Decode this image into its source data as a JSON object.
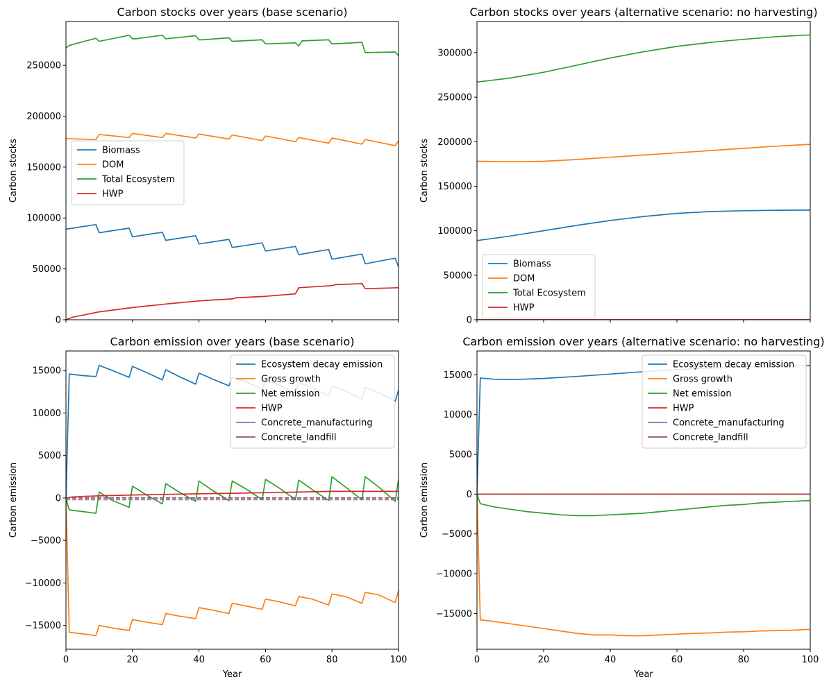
{
  "colors": {
    "Biomass": "#1f77b4",
    "DOM": "#ff7f0e",
    "Total Ecosystem": "#2ca02c",
    "HWP": "#d62728",
    "Ecosystem decay emission": "#1f77b4",
    "Gross growth": "#ff7f0e",
    "Net emission": "#2ca02c",
    "Concrete_manufacturing": "#9467bd",
    "Concrete_landfill": "#8c564b"
  },
  "chart_data": [
    {
      "type": "line",
      "title": "Carbon stocks over years (base scenario)",
      "xlabel": "",
      "ylabel": "Carbon stocks",
      "xlim": [
        0,
        100
      ],
      "ylim": [
        0,
        293000
      ],
      "xticks": [
        0,
        20,
        40,
        60,
        80,
        100
      ],
      "xtick_labels_visible": false,
      "yticks": [
        0,
        50000,
        100000,
        150000,
        200000,
        250000
      ],
      "legend": {
        "placement": "center-left",
        "entries": [
          "Biomass",
          "DOM",
          "Total Ecosystem",
          "HWP"
        ]
      },
      "series": [
        {
          "name": "Biomass",
          "x": [
            0,
            9,
            10,
            19,
            20,
            29,
            30,
            39,
            40,
            49,
            50,
            59,
            60,
            69,
            70,
            79,
            80,
            89,
            90,
            99,
            100
          ],
          "values": [
            89000,
            93500,
            85500,
            90000,
            81500,
            86000,
            78000,
            82500,
            74500,
            79000,
            71000,
            75500,
            67500,
            72000,
            64000,
            69000,
            59500,
            64500,
            55000,
            60500,
            52000
          ]
        },
        {
          "name": "DOM",
          "x": [
            0,
            9,
            10,
            19,
            20,
            29,
            30,
            39,
            40,
            49,
            50,
            59,
            60,
            69,
            70,
            79,
            80,
            89,
            90,
            99,
            100
          ],
          "values": [
            178000,
            177000,
            182000,
            179000,
            183000,
            179000,
            183000,
            178500,
            182500,
            177500,
            181500,
            176000,
            180500,
            175000,
            179000,
            173500,
            178500,
            172500,
            177000,
            171000,
            176000
          ]
        },
        {
          "name": "Total Ecosystem",
          "x": [
            0,
            1,
            9,
            10,
            19,
            20,
            21,
            29,
            30,
            39,
            40,
            41,
            49,
            50,
            59,
            60,
            69,
            70,
            71,
            79,
            80,
            89,
            90,
            99,
            100
          ],
          "values": [
            267000,
            269500,
            276500,
            273500,
            279500,
            276000,
            276000,
            279500,
            276000,
            279000,
            275000,
            275000,
            277000,
            273500,
            275000,
            271000,
            272000,
            269000,
            274000,
            275000,
            271000,
            272500,
            262500,
            263000,
            259500
          ]
        },
        {
          "name": "HWP",
          "x": [
            0,
            2,
            5,
            10,
            20,
            30,
            40,
            42,
            50,
            51,
            60,
            69,
            70,
            80,
            81,
            89,
            90,
            100
          ],
          "values": [
            0,
            2500,
            4500,
            7800,
            12000,
            15500,
            18500,
            19000,
            20500,
            21500,
            23000,
            25500,
            31500,
            33500,
            34500,
            35500,
            30500,
            31500
          ]
        }
      ]
    },
    {
      "type": "line",
      "title": "Carbon stocks over years (alternative scenario: no harvesting)",
      "xlabel": "",
      "ylabel": "Carbon stocks",
      "xlim": [
        0,
        100
      ],
      "ylim": [
        0,
        335000
      ],
      "xticks": [
        0,
        20,
        40,
        60,
        80,
        100
      ],
      "xtick_labels_visible": false,
      "yticks": [
        0,
        50000,
        100000,
        150000,
        200000,
        250000,
        300000
      ],
      "legend": {
        "placement": "lower-left",
        "entries": [
          "Biomass",
          "DOM",
          "Total Ecosystem",
          "HWP"
        ]
      },
      "series": [
        {
          "name": "Biomass",
          "x": [
            0,
            10,
            20,
            30,
            40,
            50,
            60,
            70,
            80,
            90,
            100
          ],
          "values": [
            89000,
            94000,
            100000,
            106000,
            111500,
            116000,
            119500,
            121500,
            122500,
            123000,
            123200
          ]
        },
        {
          "name": "DOM",
          "x": [
            0,
            10,
            20,
            30,
            40,
            50,
            60,
            70,
            80,
            90,
            100
          ],
          "values": [
            178000,
            177500,
            178000,
            180000,
            182500,
            185000,
            187500,
            190000,
            192500,
            195000,
            197000
          ]
        },
        {
          "name": "Total Ecosystem",
          "x": [
            0,
            10,
            20,
            30,
            40,
            50,
            60,
            70,
            80,
            90,
            100
          ],
          "values": [
            267000,
            271500,
            278000,
            286000,
            294000,
            301000,
            307000,
            311500,
            315000,
            318000,
            320000
          ]
        },
        {
          "name": "HWP",
          "x": [
            0,
            100
          ],
          "values": [
            0,
            0
          ]
        }
      ]
    },
    {
      "type": "line",
      "title": "Carbon emission over years (base scenario)",
      "xlabel": "Year",
      "ylabel": "Carbon emission",
      "xlim": [
        0,
        100
      ],
      "ylim": [
        -17800,
        17300
      ],
      "xticks": [
        0,
        20,
        40,
        60,
        80,
        100
      ],
      "yticks": [
        -15000,
        -10000,
        -5000,
        0,
        5000,
        10000,
        15000
      ],
      "legend": {
        "placement": "upper-right",
        "entries": [
          "Ecosystem decay emission",
          "Gross growth",
          "Net emission",
          "HWP",
          "Concrete_manufacturing",
          "Concrete_landfill"
        ]
      },
      "series": [
        {
          "name": "Ecosystem decay emission",
          "x": [
            0,
            1,
            5,
            9,
            10,
            14,
            19,
            20,
            24,
            29,
            30,
            34,
            39,
            40,
            44,
            49,
            50,
            54,
            59,
            60,
            64,
            69,
            70,
            74,
            79,
            80,
            84,
            89,
            90,
            94,
            99,
            100
          ],
          "values": [
            0,
            14600,
            14400,
            14300,
            15600,
            15000,
            14200,
            15500,
            14800,
            13900,
            15100,
            14300,
            13400,
            14700,
            14000,
            13200,
            14200,
            13700,
            12800,
            13900,
            13300,
            12300,
            13600,
            13000,
            12000,
            13200,
            12600,
            11600,
            13000,
            12400,
            11400,
            12700
          ]
        },
        {
          "name": "Gross growth",
          "x": [
            0,
            1,
            5,
            9,
            10,
            14,
            19,
            20,
            24,
            29,
            30,
            34,
            39,
            40,
            44,
            49,
            50,
            54,
            59,
            60,
            64,
            69,
            70,
            74,
            79,
            80,
            84,
            89,
            90,
            94,
            99,
            100
          ],
          "values": [
            0,
            -15800,
            -16000,
            -16200,
            -15000,
            -15300,
            -15600,
            -14300,
            -14600,
            -14900,
            -13600,
            -13900,
            -14200,
            -12900,
            -13200,
            -13600,
            -12400,
            -12700,
            -13100,
            -11900,
            -12200,
            -12700,
            -11600,
            -11900,
            -12600,
            -11300,
            -11600,
            -12400,
            -11100,
            -11400,
            -12300,
            -10900
          ]
        },
        {
          "name": "Net emission",
          "x": [
            0,
            1,
            5,
            9,
            10,
            14,
            19,
            20,
            24,
            29,
            30,
            34,
            39,
            40,
            44,
            49,
            50,
            54,
            59,
            60,
            64,
            69,
            70,
            74,
            79,
            80,
            84,
            89,
            90,
            94,
            99,
            100
          ],
          "values": [
            0,
            -1400,
            -1600,
            -1800,
            700,
            -300,
            -1100,
            1400,
            400,
            -700,
            1700,
            700,
            -400,
            2000,
            900,
            -300,
            2000,
            1100,
            -200,
            2200,
            1200,
            -200,
            2100,
            1000,
            -300,
            2500,
            1300,
            -200,
            2500,
            1300,
            -400,
            2200
          ]
        },
        {
          "name": "HWP",
          "x": [
            0,
            2,
            5,
            10,
            20,
            30,
            40,
            50,
            60,
            70,
            80,
            90,
            100
          ],
          "values": [
            0,
            120,
            180,
            250,
            350,
            430,
            490,
            560,
            620,
            700,
            780,
            780,
            780
          ]
        },
        {
          "name": "Concrete_manufacturing",
          "x": [
            0,
            100
          ],
          "values": [
            -200,
            -200
          ]
        },
        {
          "name": "Concrete_landfill",
          "x": [
            0,
            100
          ],
          "values": [
            0,
            0
          ]
        }
      ]
    },
    {
      "type": "line",
      "title": "Carbon emission over years (alternative scenario: no harvesting)",
      "xlabel": "Year",
      "ylabel": "Carbon emission",
      "xlim": [
        0,
        100
      ],
      "ylim": [
        -19500,
        18000
      ],
      "xticks": [
        0,
        20,
        40,
        60,
        80,
        100
      ],
      "yticks": [
        -15000,
        -10000,
        -5000,
        0,
        5000,
        10000,
        15000
      ],
      "legend": {
        "placement": "upper-right",
        "entries": [
          "Ecosystem decay emission",
          "Gross growth",
          "Net emission",
          "HWP",
          "Concrete_manufacturing",
          "Concrete_landfill"
        ]
      },
      "series": [
        {
          "name": "Ecosystem decay emission",
          "x": [
            0,
            1,
            5,
            10,
            20,
            30,
            40,
            50,
            60,
            70,
            80,
            90,
            100
          ],
          "values": [
            0,
            14600,
            14450,
            14400,
            14550,
            14800,
            15100,
            15400,
            15650,
            15850,
            16000,
            16100,
            16150
          ]
        },
        {
          "name": "Gross growth",
          "x": [
            0,
            1,
            5,
            10,
            15,
            20,
            25,
            30,
            35,
            40,
            45,
            50,
            55,
            60,
            65,
            70,
            75,
            80,
            85,
            90,
            95,
            100
          ],
          "values": [
            0,
            -15800,
            -16000,
            -16300,
            -16600,
            -16900,
            -17200,
            -17500,
            -17700,
            -17700,
            -17800,
            -17800,
            -17700,
            -17600,
            -17500,
            -17450,
            -17350,
            -17300,
            -17200,
            -17150,
            -17100,
            -17000
          ]
        },
        {
          "name": "Net emission",
          "x": [
            0,
            1,
            5,
            10,
            15,
            20,
            25,
            30,
            35,
            40,
            45,
            50,
            55,
            60,
            65,
            70,
            75,
            80,
            85,
            90,
            95,
            100
          ],
          "values": [
            0,
            -1200,
            -1600,
            -1900,
            -2200,
            -2400,
            -2600,
            -2700,
            -2700,
            -2600,
            -2500,
            -2400,
            -2200,
            -2000,
            -1800,
            -1600,
            -1400,
            -1300,
            -1100,
            -1000,
            -900,
            -800
          ]
        },
        {
          "name": "HWP",
          "x": [
            0,
            100
          ],
          "values": [
            0,
            0
          ]
        },
        {
          "name": "Concrete_manufacturing",
          "x": [
            0,
            100
          ],
          "values": [
            0,
            0
          ]
        },
        {
          "name": "Concrete_landfill",
          "x": [
            0,
            100
          ],
          "values": [
            0,
            0
          ]
        }
      ]
    }
  ]
}
